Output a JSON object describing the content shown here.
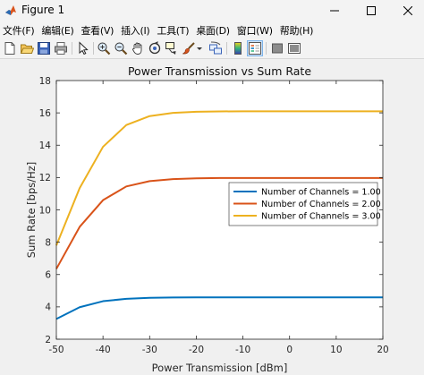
{
  "window": {
    "title": "Figure 1",
    "controls": [
      "minimize",
      "maximize",
      "close"
    ]
  },
  "menu": [
    {
      "label": "文件(F)"
    },
    {
      "label": "编辑(E)"
    },
    {
      "label": "查看(V)"
    },
    {
      "label": "插入(I)"
    },
    {
      "label": "工具(T)"
    },
    {
      "label": "桌面(D)"
    },
    {
      "label": "窗口(W)"
    },
    {
      "label": "帮助(H)"
    }
  ],
  "toolbar": {
    "icons": [
      "new-figure-icon",
      "open-file-icon",
      "save-icon",
      "print-icon",
      "pointer-icon",
      "zoom-in-icon",
      "zoom-out-icon",
      "pan-icon",
      "rotate-3d-icon",
      "data-cursor-icon",
      "brush-icon",
      "brush-dropdown-icon",
      "link-plot-icon",
      "colorbar-icon",
      "legend-icon",
      "hide-plot-tools-icon",
      "show-plot-tools-icon"
    ]
  },
  "colors": {
    "series": [
      "#0072BD",
      "#D95319",
      "#EDB120"
    ],
    "axes": "#262626",
    "grid_bg": "#ffffff",
    "figure_bg": "#f0f0f0"
  },
  "chart_data": {
    "type": "line",
    "title": "Power Transmission vs Sum Rate",
    "xlabel": "Power Transmission [dBm]",
    "ylabel": "Sum Rate [bps/Hz]",
    "xlim": [
      -50,
      20
    ],
    "ylim": [
      2,
      18
    ],
    "xticks": [
      -50,
      -40,
      -30,
      -20,
      -10,
      0,
      10,
      20
    ],
    "yticks": [
      2,
      4,
      6,
      8,
      10,
      12,
      14,
      16,
      18
    ],
    "grid": false,
    "legend_position": "upper-right",
    "x": [
      -50,
      -45,
      -40,
      -35,
      -30,
      -25,
      -20,
      -15,
      -10,
      -5,
      0,
      5,
      10,
      15,
      20
    ],
    "series": [
      {
        "name": "Number of Channels = 1.00",
        "values": [
          3.25,
          3.98,
          4.35,
          4.5,
          4.56,
          4.58,
          4.59,
          4.59,
          4.59,
          4.59,
          4.59,
          4.59,
          4.59,
          4.59,
          4.59
        ]
      },
      {
        "name": "Number of Channels = 2.00",
        "values": [
          6.35,
          8.95,
          10.6,
          11.45,
          11.78,
          11.9,
          11.95,
          11.97,
          11.97,
          11.97,
          11.97,
          11.97,
          11.97,
          11.97,
          11.97
        ]
      },
      {
        "name": "Number of Channels = 3.00",
        "values": [
          7.8,
          11.35,
          13.9,
          15.25,
          15.8,
          16.0,
          16.07,
          16.09,
          16.1,
          16.1,
          16.1,
          16.1,
          16.1,
          16.1,
          16.1
        ]
      }
    ]
  }
}
